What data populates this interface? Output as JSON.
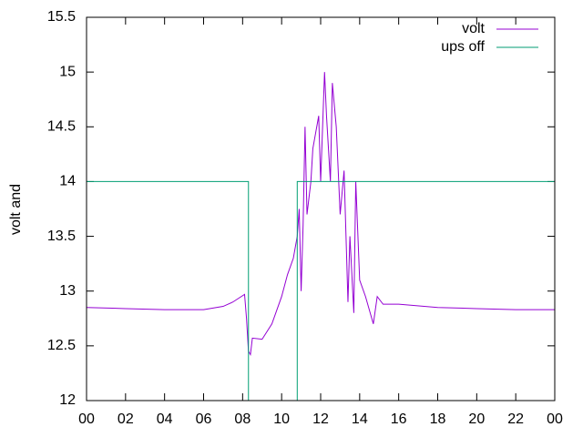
{
  "chart_data": {
    "type": "line",
    "ylabel": "volt and",
    "xlim": [
      0,
      24
    ],
    "xticks": [
      {
        "value": 0,
        "label": "00"
      },
      {
        "value": 2,
        "label": "02"
      },
      {
        "value": 4,
        "label": "04"
      },
      {
        "value": 6,
        "label": "06"
      },
      {
        "value": 8,
        "label": "08"
      },
      {
        "value": 10,
        "label": "10"
      },
      12,
      14,
      16,
      18,
      20,
      22,
      {
        "value": 24,
        "label": "00"
      }
    ],
    "ylim": [
      12,
      15.5
    ],
    "yticks": [
      12,
      12.5,
      13,
      13.5,
      14,
      14.5,
      15,
      15.5
    ],
    "legend": "top-right",
    "series": [
      {
        "name": "volt",
        "color": "#9400d3",
        "x": [
          0,
          2,
          4,
          6,
          7,
          7.5,
          8.1,
          8.2,
          8.3,
          8.4,
          8.5,
          9,
          9.5,
          10,
          10.3,
          10.6,
          10.8,
          10.9,
          11.0,
          11.1,
          11.2,
          11.3,
          11.5,
          11.6,
          11.7,
          11.9,
          12.0,
          12.2,
          12.3,
          12.5,
          12.6,
          12.8,
          13.0,
          13.2,
          13.4,
          13.5,
          13.7,
          13.8,
          14.0,
          14.3,
          14.7,
          14.9,
          15.2,
          16,
          18,
          20,
          22,
          24
        ],
        "values": [
          12.85,
          12.84,
          12.83,
          12.83,
          12.86,
          12.9,
          12.97,
          12.75,
          12.45,
          12.42,
          12.57,
          12.56,
          12.7,
          12.95,
          13.15,
          13.3,
          13.5,
          13.75,
          13.0,
          13.6,
          14.5,
          13.7,
          14.0,
          14.3,
          14.4,
          14.6,
          14.0,
          15.0,
          14.6,
          14.0,
          14.9,
          14.5,
          13.7,
          14.1,
          12.9,
          13.5,
          12.8,
          14.0,
          13.1,
          12.95,
          12.7,
          12.95,
          12.88,
          12.88,
          12.85,
          12.84,
          12.83,
          12.83
        ]
      },
      {
        "name": "ups off",
        "color": "#009e73",
        "x": [
          0,
          8.3,
          8.3,
          10.8,
          10.8,
          24
        ],
        "values": [
          14,
          14,
          12,
          12,
          14,
          14
        ]
      }
    ]
  }
}
